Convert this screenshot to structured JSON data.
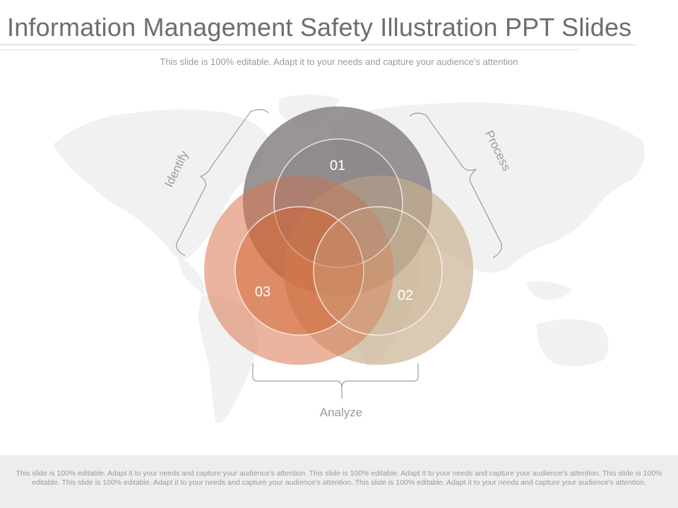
{
  "slide": {
    "title": "Information Management Safety Illustration PPT Slides",
    "subtitle": "This slide is 100% editable. Adapt it to your needs and capture your audience's attention"
  },
  "diagram": {
    "circles": [
      {
        "label": "01",
        "color": "#837d80"
      },
      {
        "label": "02",
        "color": "#c8b08f"
      },
      {
        "label": "03",
        "color": "#d8764f"
      }
    ],
    "brackets": {
      "left": "Identify",
      "right": "Process",
      "bottom": "Analyze"
    },
    "background": "world-map"
  },
  "footer": {
    "text": "This slide is 100% editable. Adapt it to your needs and capture your audience's attention. This slide is 100% editable. Adapt it to your needs and capture your audience's attention. This slide is 100% editable. This slide is 100% editable. Adapt it to your needs and capture your audience's attention. This slide is 100% editable. Adapt it to your needs and capture your audience's attention."
  }
}
